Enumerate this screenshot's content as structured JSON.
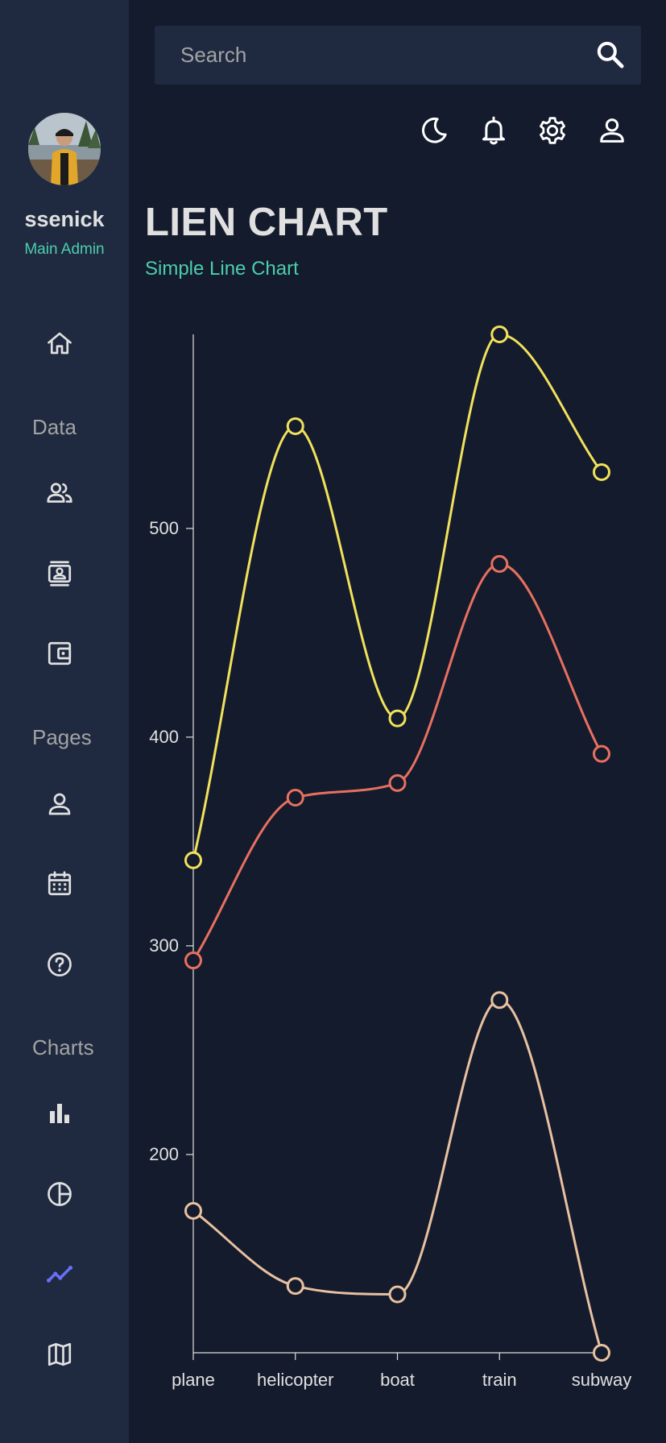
{
  "user": {
    "name": "ssenick",
    "role": "Main Admin"
  },
  "sidebar": {
    "items": [
      {
        "section": "",
        "icon": "home-icon",
        "name": "dashboard"
      },
      {
        "section": "Data",
        "icon": "people-icon",
        "name": "team"
      },
      {
        "section": "Data",
        "icon": "contacts-icon",
        "name": "contacts"
      },
      {
        "section": "Data",
        "icon": "wallet-icon",
        "name": "invoices"
      },
      {
        "section": "Pages",
        "icon": "person-icon",
        "name": "profile"
      },
      {
        "section": "Pages",
        "icon": "calendar-icon",
        "name": "calendar"
      },
      {
        "section": "Pages",
        "icon": "help-icon",
        "name": "faq"
      },
      {
        "section": "Charts",
        "icon": "bar-chart-icon",
        "name": "bar"
      },
      {
        "section": "Charts",
        "icon": "pie-chart-icon",
        "name": "pie"
      },
      {
        "section": "Charts",
        "icon": "line-chart-icon",
        "name": "line",
        "active": true
      },
      {
        "section": "Charts",
        "icon": "map-icon",
        "name": "geography"
      }
    ],
    "sections": {
      "data": "Data",
      "pages": "Pages",
      "charts": "Charts"
    },
    "active_color": "#6870fa",
    "icon_color": "#e0e0e0"
  },
  "search": {
    "placeholder": "Search",
    "icon": "search-icon"
  },
  "topbar": {
    "icons": [
      "moon-icon",
      "bell-icon",
      "gear-icon",
      "person-icon"
    ]
  },
  "header": {
    "title": "LIEN CHART",
    "subtitle": "Simple Line Chart"
  },
  "colors": {
    "accent": "#4cceac",
    "background": "#141b2d",
    "panel": "#1f2a40"
  },
  "chart_data": {
    "type": "line",
    "categories": [
      "plane",
      "helicopter",
      "boat",
      "train",
      "subway"
    ],
    "yticks": [
      200,
      300,
      400,
      500
    ],
    "ylim": [
      105,
      593
    ],
    "curve": "smooth",
    "grid": false,
    "legend": "none",
    "series": [
      {
        "color": "#f1e15b",
        "values": [
          341,
          549,
          409,
          593,
          527
        ]
      },
      {
        "color": "#e8705f",
        "values": [
          293,
          371,
          378,
          483,
          392
        ]
      },
      {
        "color": "#e8c1a0",
        "values": [
          173,
          137,
          133,
          274,
          105
        ]
      }
    ]
  }
}
